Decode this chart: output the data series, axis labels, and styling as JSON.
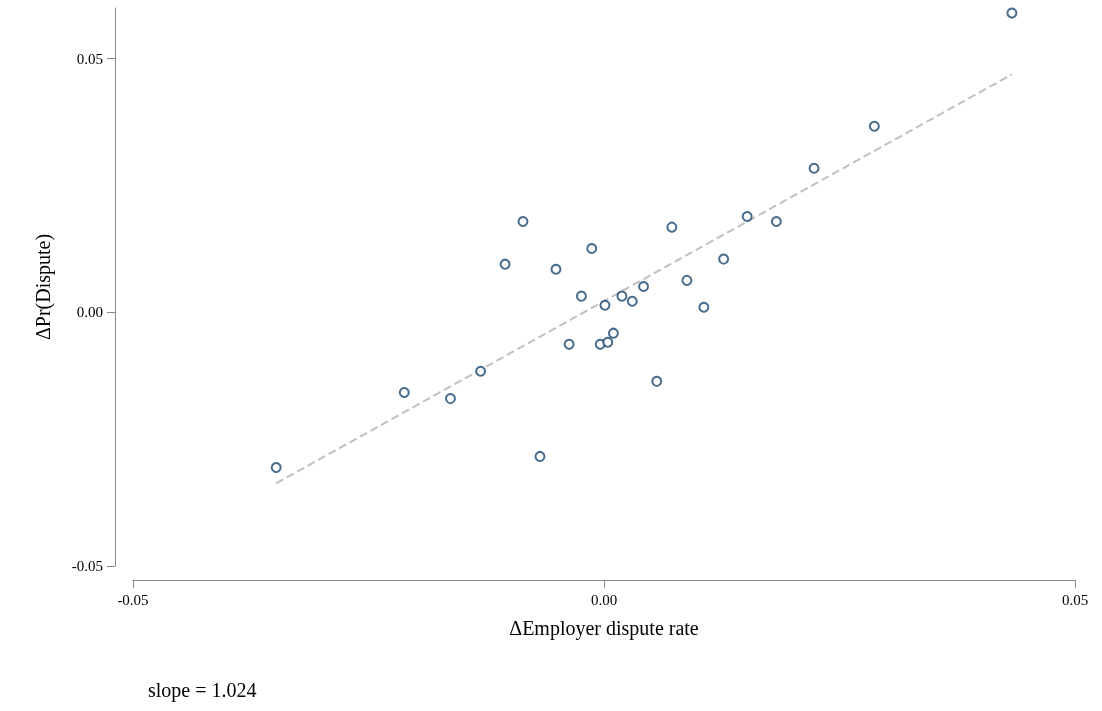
{
  "chart_data": {
    "type": "scatter",
    "xlabel": "ΔEmployer dispute rate",
    "ylabel": "ΔPr(Dispute)",
    "xlim": [
      -0.05,
      0.05
    ],
    "ylim": [
      -0.05,
      0.06
    ],
    "xticks": [
      -0.05,
      {
        "value": 0,
        "label": "0.00"
      },
      0.05
    ],
    "yticks": [
      -0.05,
      {
        "value": 0,
        "label": "0.00"
      },
      0.05
    ],
    "marker": "circle",
    "annotations": [
      "slope = 1.024"
    ],
    "series": [
      {
        "color": "#1a476f",
        "x": [
          -0.0348,
          -0.0212,
          -0.0163,
          -0.0131,
          -0.0105,
          -0.0086,
          -0.0068,
          -0.0051,
          -0.0037,
          -0.0024,
          -0.0013,
          -0.0004,
          0.0001,
          0.0004,
          0.001,
          0.0019,
          0.003,
          0.0042,
          0.0056,
          0.0072,
          0.0088,
          0.0106,
          0.0127,
          0.0152,
          0.0183,
          0.0223,
          0.0287,
          0.0433
        ],
        "values": [
          -0.0306,
          -0.0158,
          -0.017,
          -0.0116,
          0.0095,
          0.0179,
          -0.0284,
          0.0085,
          -0.0063,
          0.0032,
          0.0126,
          -0.0063,
          0.0014,
          -0.0059,
          -0.0041,
          0.0032,
          0.0022,
          0.0051,
          -0.0136,
          0.0168,
          0.0063,
          0.001,
          0.0105,
          0.0189,
          0.0179,
          0.0284,
          0.0367,
          0.059
        ]
      },
      {
        "type": "line",
        "color": "#c0c0c0",
        "line_style": "dashed",
        "marker": "none",
        "x": [
          -0.0348,
          0.0433
        ],
        "values": [
          -0.0337,
          0.0469
        ]
      }
    ]
  }
}
